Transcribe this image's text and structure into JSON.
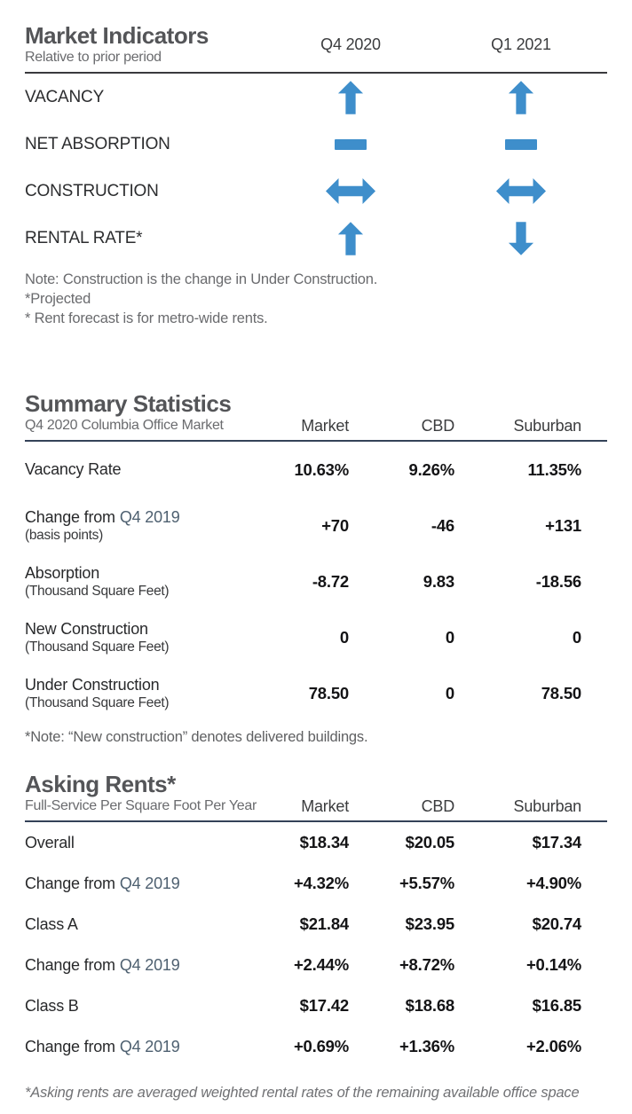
{
  "colors": {
    "arrow_blue": "#3e8ecb",
    "rule_navy": "#344258"
  },
  "market_indicators": {
    "title": "Market Indicators",
    "subtitle": "Relative to prior period",
    "columns": [
      "Q4 2020",
      "Q1 2021"
    ],
    "rows": [
      {
        "label": "VACANCY",
        "q4_2020": "up",
        "q1_2021": "up"
      },
      {
        "label": "NET ABSORPTION",
        "q4_2020": "flat",
        "q1_2021": "flat"
      },
      {
        "label": "CONSTRUCTION",
        "q4_2020": "both",
        "q1_2021": "both"
      },
      {
        "label": "RENTAL RATE*",
        "q4_2020": "up",
        "q1_2021": "down"
      }
    ],
    "notes": [
      "Note: Construction is the change in Under Construction.",
      "*Projected",
      "* Rent forecast is for metro-wide rents."
    ]
  },
  "summary_statistics": {
    "title": "Summary Statistics",
    "subtitle": "Q4 2020 Columbia Office Market",
    "columns": [
      "Market",
      "CBD",
      "Suburban"
    ],
    "rows": [
      {
        "label": "Vacancy Rate",
        "market": "10.63%",
        "cbd": "9.26%",
        "suburban": "11.35%"
      },
      {
        "label": "Change from",
        "accent": "Q4 2019",
        "sublabel": "(basis points)",
        "market": "+70",
        "cbd": "-46",
        "suburban": "+131"
      },
      {
        "label": "Absorption",
        "sublabel": "(Thousand Square Feet)",
        "market": "-8.72",
        "cbd": "9.83",
        "suburban": "-18.56"
      },
      {
        "label": "New Construction",
        "sublabel": "(Thousand Square Feet)",
        "market": "0",
        "cbd": "0",
        "suburban": "0"
      },
      {
        "label": "Under Construction",
        "sublabel": "(Thousand Square Feet)",
        "market": "78.50",
        "cbd": "0",
        "suburban": "78.50"
      }
    ],
    "note": "*Note: “New construction” denotes delivered buildings."
  },
  "asking_rents": {
    "title": "Asking Rents*",
    "subtitle": "Full-Service Per Square Foot Per Year",
    "columns": [
      "Market",
      "CBD",
      "Suburban"
    ],
    "rows": [
      {
        "label": "Overall",
        "market": "$18.34",
        "cbd": "$20.05",
        "suburban": "$17.34"
      },
      {
        "label": "Change from",
        "accent": "Q4 2019",
        "market": "+4.32%",
        "cbd": "+5.57%",
        "suburban": "+4.90%"
      },
      {
        "label": "Class A",
        "market": "$21.84",
        "cbd": "$23.95",
        "suburban": "$20.74"
      },
      {
        "label": "Change from",
        "accent": "Q4 2019",
        "market": "+2.44%",
        "cbd": "+8.72%",
        "suburban": "+0.14%"
      },
      {
        "label": "Class B",
        "market": "$17.42",
        "cbd": "$18.68",
        "suburban": "$16.85"
      },
      {
        "label": "Change from",
        "accent": "Q4 2019",
        "market": "+0.69%",
        "cbd": "+1.36%",
        "suburban": "+2.06%"
      }
    ],
    "footnote": "*Asking rents are averaged weighted rental rates of the remaining available office space"
  }
}
